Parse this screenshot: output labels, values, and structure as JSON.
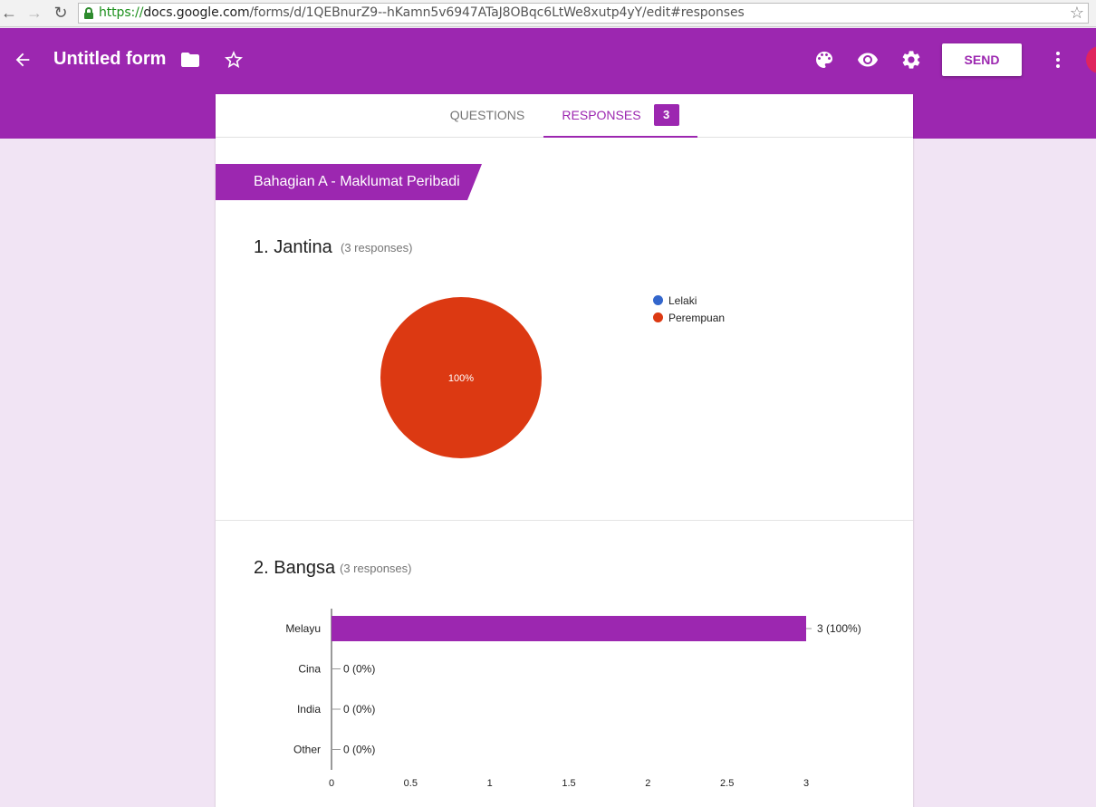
{
  "browser": {
    "url_protocol": "https://",
    "url_host": "docs.google.com",
    "url_path": "/forms/d/1QEBnurZ9--hKamn5v6947ATaJ8OBqc6LtWe8xutp4yY/edit#responses"
  },
  "header": {
    "title": "Untitled form",
    "send_label": "SEND",
    "icons": [
      "back-arrow-icon",
      "folder-icon",
      "star-icon",
      "palette-icon",
      "eye-icon",
      "gear-icon",
      "more-vert-icon"
    ],
    "brand_color": "#9c27b0"
  },
  "tabs": {
    "questions_label": "QUESTIONS",
    "responses_label": "RESPONSES",
    "responses_count": "3"
  },
  "section": {
    "title": "Bahagian A - Maklumat Peribadi"
  },
  "questions": [
    {
      "title": "1. Jantina",
      "count": "(3 responses)",
      "legend": [
        "Lelaki",
        "Perempuan"
      ]
    },
    {
      "title": "2. Bangsa",
      "count": "(3 responses)"
    }
  ],
  "chart_data": [
    {
      "type": "pie",
      "labels": [
        "Lelaki",
        "Perempuan"
      ],
      "values": [
        0,
        3
      ],
      "colors": [
        "#3366cc",
        "#dc3912"
      ],
      "slice_labels": [
        "",
        "100%"
      ],
      "legend_position": "right"
    },
    {
      "type": "bar",
      "orientation": "horizontal",
      "categories": [
        "Melayu",
        "Cina",
        "India",
        "Other"
      ],
      "values": [
        3,
        0,
        0,
        0
      ],
      "data_labels": [
        "3 (100%)",
        "0 (0%)",
        "0 (0%)",
        "0 (0%)"
      ],
      "color": "#9c27b0",
      "xlim": [
        0,
        3
      ],
      "x_ticks": [
        "0",
        "0.5",
        "1",
        "1.5",
        "2",
        "2.5",
        "3"
      ]
    }
  ]
}
